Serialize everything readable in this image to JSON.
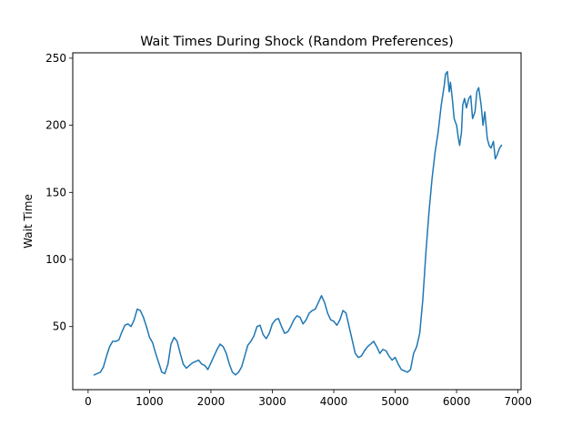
{
  "chart_data": {
    "type": "line",
    "title": "Wait Times During Shock (Random Preferences)",
    "xlabel": "",
    "ylabel": "Wait Time",
    "xlim": [
      -250,
      7050
    ],
    "ylim": [
      3,
      254
    ],
    "xticks": [
      0,
      1000,
      2000,
      3000,
      4000,
      5000,
      6000,
      7000
    ],
    "yticks": [
      50,
      100,
      150,
      200,
      250
    ],
    "grid": false,
    "legend": "none",
    "series": [
      {
        "color": "#1f77b4",
        "x": [
          100,
          150,
          200,
          250,
          300,
          350,
          400,
          450,
          500,
          550,
          600,
          650,
          700,
          750,
          800,
          850,
          900,
          950,
          1000,
          1050,
          1100,
          1150,
          1200,
          1250,
          1300,
          1350,
          1400,
          1450,
          1500,
          1550,
          1600,
          1650,
          1700,
          1750,
          1800,
          1850,
          1900,
          1950,
          2000,
          2050,
          2100,
          2150,
          2200,
          2250,
          2300,
          2350,
          2400,
          2450,
          2500,
          2550,
          2600,
          2650,
          2700,
          2750,
          2800,
          2850,
          2900,
          2950,
          3000,
          3050,
          3100,
          3150,
          3200,
          3250,
          3300,
          3350,
          3400,
          3450,
          3500,
          3550,
          3600,
          3650,
          3700,
          3750,
          3800,
          3850,
          3900,
          3950,
          4000,
          4050,
          4100,
          4150,
          4200,
          4250,
          4300,
          4350,
          4400,
          4450,
          4500,
          4550,
          4600,
          4650,
          4700,
          4750,
          4800,
          4850,
          4900,
          4950,
          5000,
          5050,
          5100,
          5150,
          5200,
          5250,
          5300,
          5350,
          5400,
          5450,
          5500,
          5550,
          5600,
          5650,
          5700,
          5750,
          5800,
          5820,
          5850,
          5880,
          5900,
          5930,
          5960,
          6000,
          6030,
          6050,
          6080,
          6100,
          6130,
          6160,
          6200,
          6230,
          6260,
          6300,
          6330,
          6360,
          6400,
          6430,
          6460,
          6500,
          6530,
          6560,
          6600,
          6630,
          6660,
          6700,
          6730
        ],
        "values": [
          14,
          15,
          16,
          20,
          28,
          35,
          39,
          39,
          40,
          46,
          51,
          52,
          50,
          55,
          63,
          62,
          57,
          50,
          42,
          38,
          30,
          23,
          16,
          15,
          22,
          37,
          42,
          39,
          30,
          22,
          19,
          21,
          23,
          24,
          25,
          22,
          21,
          18,
          23,
          28,
          33,
          37,
          35,
          30,
          22,
          16,
          14,
          16,
          20,
          28,
          36,
          39,
          43,
          50,
          51,
          44,
          41,
          45,
          52,
          55,
          56,
          50,
          45,
          46,
          50,
          55,
          58,
          57,
          52,
          55,
          60,
          62,
          63,
          68,
          73,
          68,
          60,
          55,
          54,
          51,
          55,
          62,
          60,
          50,
          40,
          30,
          27,
          28,
          32,
          35,
          37,
          39,
          35,
          30,
          33,
          32,
          28,
          25,
          27,
          22,
          18,
          17,
          16,
          18,
          30,
          35,
          45,
          70,
          105,
          135,
          160,
          180,
          195,
          215,
          230,
          238,
          240,
          225,
          232,
          220,
          205,
          200,
          190,
          185,
          195,
          215,
          220,
          213,
          220,
          222,
          205,
          210,
          225,
          228,
          215,
          200,
          210,
          190,
          185,
          183,
          188,
          175,
          178,
          183,
          185
        ]
      }
    ]
  }
}
